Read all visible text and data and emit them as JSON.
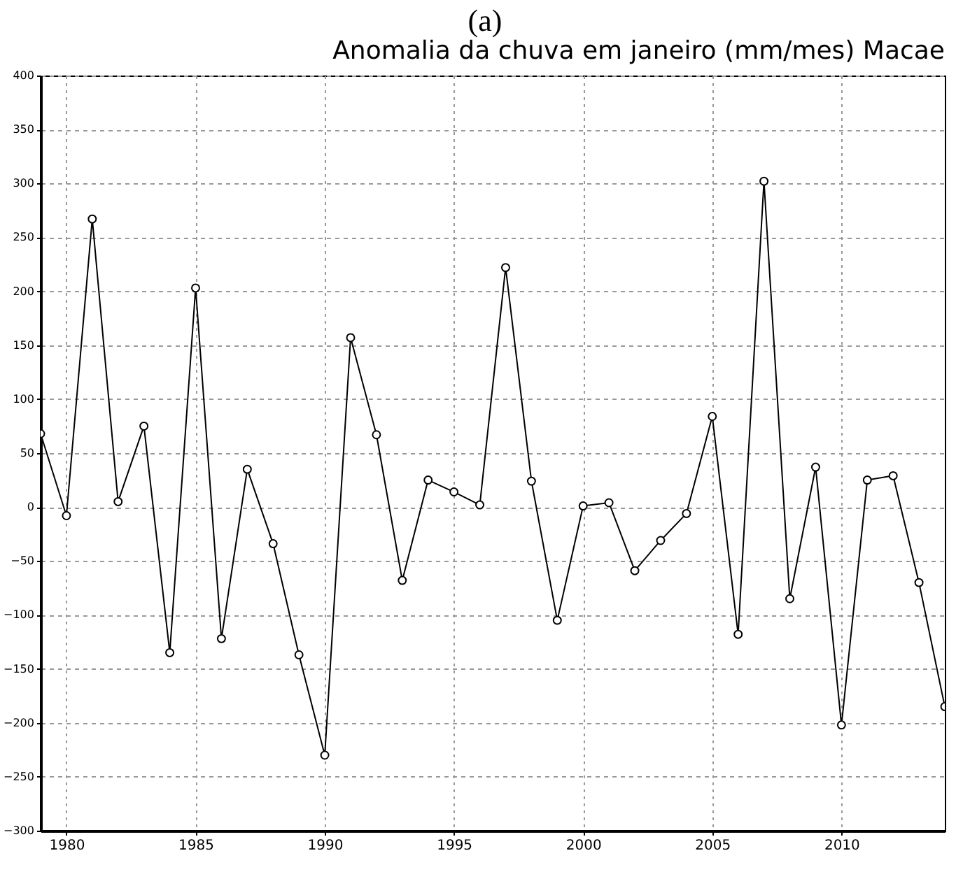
{
  "chart_data": {
    "type": "line",
    "title": "Anomalia da chuva em janeiro (mm/mes) Macae",
    "annotations": [
      "(a)"
    ],
    "x": [
      1979,
      1980,
      1981,
      1982,
      1983,
      1984,
      1985,
      1986,
      1987,
      1988,
      1989,
      1990,
      1991,
      1992,
      1993,
      1994,
      1995,
      1996,
      1997,
      1998,
      1999,
      2000,
      2001,
      2002,
      2003,
      2004,
      2005,
      2006,
      2007,
      2008,
      2009,
      2010,
      2011,
      2012,
      2013,
      2014
    ],
    "series": [
      {
        "color": "#000000",
        "values": [
          68,
          -8,
          267,
          5,
          75,
          -135,
          203,
          -122,
          35,
          -34,
          -137,
          -230,
          157,
          67,
          -68,
          25,
          14,
          2,
          222,
          24,
          -105,
          1,
          4,
          -59,
          -31,
          -6,
          84,
          -118,
          302,
          -85,
          37,
          -202,
          25,
          29,
          -70,
          -185
        ]
      }
    ],
    "xlim": [
      1979,
      2014
    ],
    "xticks": [
      1980,
      1985,
      1990,
      1995,
      2000,
      2005,
      2010
    ],
    "ylim": [
      -300,
      400
    ],
    "yticks": [
      -300,
      -250,
      -200,
      -150,
      -100,
      -50,
      0,
      50,
      100,
      150,
      200,
      250,
      300,
      350,
      400
    ],
    "grid": true,
    "marker": "circle",
    "line_style": "solid"
  }
}
